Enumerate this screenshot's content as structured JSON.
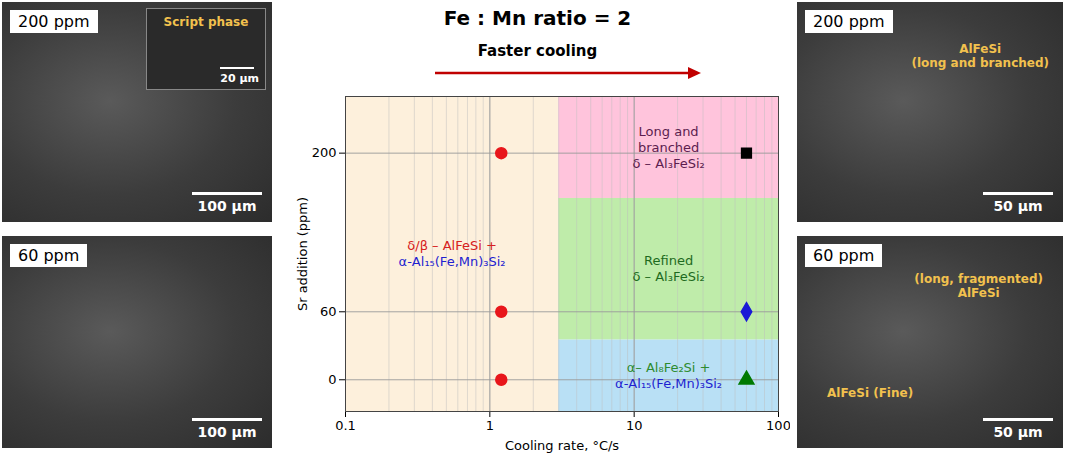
{
  "chart_data": {
    "type": "scatter",
    "title": "Fe : Mn ratio = 2",
    "subtitle": "Faster cooling",
    "x_label": "Cooling rate, °C/s",
    "y_label": "Sr addition (ppm)",
    "log": "x",
    "grid": true,
    "xlim": [
      0.1,
      100
    ],
    "xticks": [
      0.1,
      1,
      10,
      100
    ],
    "ylim": [
      -28,
      250
    ],
    "yticks": [
      0,
      60,
      200
    ],
    "regions": [
      {
        "x1": 0.1,
        "x2": 3,
        "y1": -28,
        "y2": 250,
        "color": "#fdf0dc",
        "lines": [
          {
            "text": "δ/β – AlFeSi +",
            "color": "#d62020"
          },
          {
            "text": "α-Al₁₅(Fe,Mn)₃Si₂",
            "color": "#1f1fd0"
          }
        ]
      },
      {
        "x1": 3,
        "x2": 100,
        "y1": 160,
        "y2": 250,
        "color": "#ffc4dc",
        "lines": [
          {
            "text": "Long and",
            "color": "#5c1d4f"
          },
          {
            "text": "branched",
            "color": "#5c1d4f"
          },
          {
            "text": "δ – Al₃FeSi₂",
            "color": "#5c1d4f"
          }
        ]
      },
      {
        "x1": 3,
        "x2": 100,
        "y1": 35,
        "y2": 160,
        "color": "#bfecaa",
        "lines": [
          {
            "text": "Refined",
            "color": "#1e6b1e"
          },
          {
            "text": "δ – Al₃FeSi₂",
            "color": "#1e6b1e"
          }
        ]
      },
      {
        "x1": 3,
        "x2": 100,
        "y1": -28,
        "y2": 35,
        "color": "#b9e0f5",
        "lines": [
          {
            "text": "α– Al₈Fe₂Si +",
            "color": "#2e8b2e"
          },
          {
            "text": "α-Al₁₅(Fe,Mn)₃Si₂",
            "color": "#1f1fd0"
          }
        ]
      }
    ],
    "points": [
      {
        "x": 1.2,
        "y": 200,
        "marker": "circle",
        "color": "#e8161b"
      },
      {
        "x": 1.2,
        "y": 60,
        "marker": "circle",
        "color": "#e8161b"
      },
      {
        "x": 1.2,
        "y": 0,
        "marker": "circle",
        "color": "#e8161b"
      },
      {
        "x": 60,
        "y": 200,
        "marker": "square",
        "color": "#000000"
      },
      {
        "x": 60,
        "y": 60,
        "marker": "diamond",
        "color": "#1a1ad6"
      },
      {
        "x": 60,
        "y": 0,
        "marker": "triangle",
        "color": "#007a00"
      }
    ]
  },
  "micrographs": [
    {
      "label": "200 ppm",
      "scale_bar": "100 µm",
      "inset": {
        "annotation": "Script phase",
        "scale_bar": "20 µm"
      },
      "annotations": []
    },
    {
      "label": "60 ppm",
      "scale_bar": "100 µm",
      "annotations": []
    },
    {
      "label": "200 ppm",
      "scale_bar": "50 µm",
      "annotations": [
        {
          "lines": [
            "AlFeSi",
            "(long and branched)"
          ]
        }
      ]
    },
    {
      "label": "60 ppm",
      "scale_bar": "50 µm",
      "annotations": [
        {
          "lines": [
            "(long, fragmented)",
            "AlFeSi"
          ]
        },
        {
          "lines": [
            "AlFeSi (Fine)"
          ]
        }
      ]
    }
  ]
}
